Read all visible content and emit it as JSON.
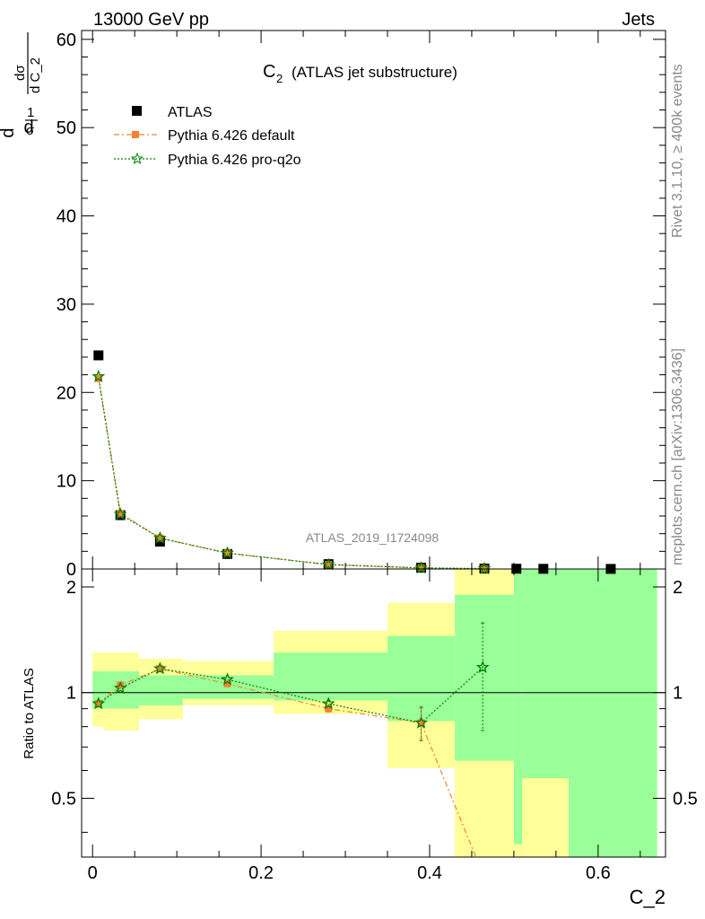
{
  "header": {
    "left": "13000 GeV pp",
    "right": "Jets"
  },
  "side_notes": {
    "top": "Rivet 3.1.10, ≥ 400k events",
    "bottom": "mcplots.cern.ch [arXiv:1306.3436]"
  },
  "watermark": "ATLAS_2019_I1724098",
  "colors": {
    "atlas": "#000000",
    "default": "#f58231",
    "proq2o": "#008000",
    "band_yellow": "#ffff99",
    "band_green": "#99ff99"
  },
  "chart_data": {
    "type": "scatter",
    "title_main": "C",
    "title_sub": "2",
    "title_rest": "(ATLAS jet substructure)",
    "xlabel": "C_2",
    "xlim": [
      -0.013,
      0.68
    ],
    "xticks": [
      0,
      0.2,
      0.4,
      0.6
    ],
    "xtick_labels": [
      "0",
      "0.2",
      "0.4",
      "0.6"
    ],
    "main": {
      "ylabel_parts": [
        "d",
        "1",
        "σ",
        "d",
        "dσ",
        "d C_2"
      ],
      "ylim": [
        0,
        61
      ],
      "yticks": [
        0,
        10,
        20,
        30,
        40,
        50,
        60
      ],
      "ytick_labels": [
        "0",
        "10",
        "20",
        "30",
        "40",
        "50",
        "60"
      ],
      "series": [
        {
          "name": "ATLAS",
          "marker": "square",
          "x": [
            0.007,
            0.033,
            0.08,
            0.16,
            0.28,
            0.39,
            0.465,
            0.503,
            0.535,
            0.615
          ],
          "y": [
            24.2,
            6.1,
            3.1,
            1.7,
            0.55,
            0.15,
            0.05,
            0.03,
            0.02,
            0.01
          ]
        },
        {
          "name": "Pythia 6.426 default",
          "marker": "square-small",
          "x": [
            0.007,
            0.033,
            0.08,
            0.16,
            0.28,
            0.39,
            0.465
          ],
          "y": [
            21.6,
            6.3,
            3.5,
            1.8,
            0.5,
            0.12,
            0.0
          ]
        },
        {
          "name": "Pythia 6.426 pro-q2o",
          "marker": "star",
          "x": [
            0.007,
            0.033,
            0.08,
            0.16,
            0.28,
            0.39,
            0.465
          ],
          "y": [
            21.8,
            6.2,
            3.5,
            1.8,
            0.5,
            0.12,
            0.05
          ]
        }
      ]
    },
    "ratio": {
      "ylabel": "Ratio to ATLAS",
      "ylim": [
        0.34,
        2.25
      ],
      "yticks": [
        0.5,
        1,
        2
      ],
      "ytick_labels": [
        "0.5",
        "1",
        "2"
      ],
      "bins": [
        {
          "lo": 0.0,
          "hi": 0.013,
          "y_lo": 0.8,
          "y_hi": 1.3,
          "g_lo": 0.9,
          "g_hi": 1.15
        },
        {
          "lo": 0.013,
          "hi": 0.055,
          "y_lo": 0.78,
          "y_hi": 1.3,
          "g_lo": 0.9,
          "g_hi": 1.15
        },
        {
          "lo": 0.055,
          "hi": 0.107,
          "y_lo": 0.84,
          "y_hi": 1.25,
          "g_lo": 0.92,
          "g_hi": 1.12
        },
        {
          "lo": 0.107,
          "hi": 0.215,
          "y_lo": 0.92,
          "y_hi": 1.23,
          "g_lo": 0.96,
          "g_hi": 1.12
        },
        {
          "lo": 0.215,
          "hi": 0.35,
          "y_lo": 0.87,
          "y_hi": 1.5,
          "g_lo": 0.95,
          "g_hi": 1.3
        },
        {
          "lo": 0.35,
          "hi": 0.43,
          "y_lo": 0.61,
          "y_hi": 1.8,
          "g_lo": 0.83,
          "g_hi": 1.45
        },
        {
          "lo": 0.43,
          "hi": 0.5,
          "y_lo": 0.34,
          "y_hi": 2.25,
          "g_lo": 0.64,
          "g_hi": 1.9
        },
        {
          "lo": 0.5,
          "hi": 0.51,
          "y_lo": 0.34,
          "y_hi": 2.25,
          "g_lo": 0.37,
          "g_hi": 2.25
        },
        {
          "lo": 0.51,
          "hi": 0.565,
          "y_lo": 0.34,
          "y_hi": 2.25,
          "g_lo": 0.34,
          "g_hi": 2.25
        },
        {
          "lo": 0.565,
          "hi": 0.67,
          "y_lo": 0.34,
          "y_hi": 2.25,
          "g_lo": 0.34,
          "g_hi": 2.25
        }
      ],
      "green_gaps": [
        {
          "lo": 0.51,
          "hi": 0.565,
          "y_lo": 0.34,
          "y_hi": 0.57
        }
      ],
      "series": [
        {
          "name": "Pythia 6.426 default",
          "marker": "square-small",
          "x": [
            0.007,
            0.033,
            0.08,
            0.16,
            0.28,
            0.39,
            0.455
          ],
          "y": [
            0.93,
            1.05,
            1.17,
            1.06,
            0.9,
            0.82,
            0.34
          ],
          "err": [
            0,
            0,
            0,
            0,
            0.02,
            0.08,
            0
          ]
        },
        {
          "name": "Pythia 6.426 pro-q2o",
          "marker": "star",
          "x": [
            0.007,
            0.033,
            0.08,
            0.16,
            0.28,
            0.39,
            0.463
          ],
          "y": [
            0.93,
            1.03,
            1.17,
            1.09,
            0.93,
            0.82,
            1.18
          ],
          "err": [
            0,
            0,
            0,
            0,
            0.02,
            0.09,
            0.4
          ]
        }
      ]
    }
  }
}
